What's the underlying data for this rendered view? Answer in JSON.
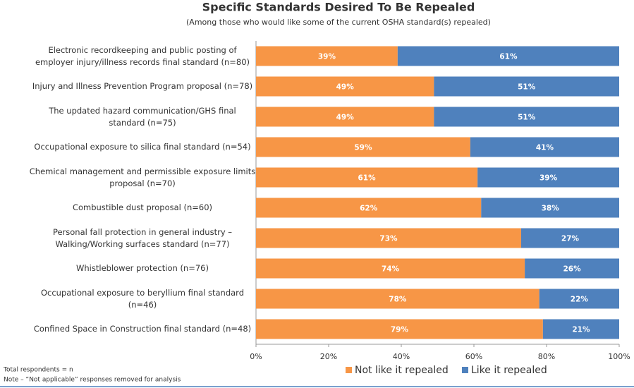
{
  "chart_data": {
    "type": "stacked-bar-horizontal",
    "title": "Specific Standards Desired To Be Repealed",
    "subtitle": "(Among those who would like some of the current OSHA standard(s) repealed)",
    "categories": [
      "Electronic recordkeeping and public posting of\nemployer injury/illness records final standard (n=80)",
      "Injury and Illness Prevention Program proposal (n=78)",
      "The updated hazard communication/GHS final\nstandard (n=75)",
      "Occupational exposure to silica final standard (n=54)",
      "Chemical management and permissible exposure limits\nproposal (n=70)",
      "Combustible dust proposal (n=60)",
      "Personal fall protection in general industry –\nWalking/Working surfaces standard (n=77)",
      "Whistleblower protection (n=76)",
      "Occupational exposure to beryllium final standard\n(n=46)",
      "Confined Space in Construction final standard (n=48)"
    ],
    "series": [
      {
        "name": "Not like it repealed",
        "color": "#f79646",
        "values": [
          39,
          49,
          49,
          59,
          61,
          62,
          73,
          74,
          78,
          79
        ],
        "value_labels": [
          "39%",
          "49%",
          "49%",
          "59%",
          "61%",
          "62%",
          "73%",
          "74%",
          "78%",
          "79%"
        ]
      },
      {
        "name": "Like it repealed",
        "color": "#4f81bd",
        "values": [
          61,
          51,
          51,
          41,
          39,
          38,
          27,
          26,
          22,
          21
        ],
        "value_labels": [
          "61%",
          "51%",
          "51%",
          "41%",
          "39%",
          "38%",
          "27%",
          "26%",
          "22%",
          "21%"
        ]
      }
    ],
    "xlim": [
      0,
      100
    ],
    "xticks": [
      {
        "value": 0,
        "label": "0%"
      },
      {
        "value": 20,
        "label": "20%"
      },
      {
        "value": 40,
        "label": "40%"
      },
      {
        "value": 60,
        "label": "60%"
      },
      {
        "value": 80,
        "label": "80%"
      },
      {
        "value": 100,
        "label": "100%"
      }
    ],
    "notes": [
      "Total respondents = n",
      "Note – “Not applicable” responses removed for analysis"
    ]
  }
}
